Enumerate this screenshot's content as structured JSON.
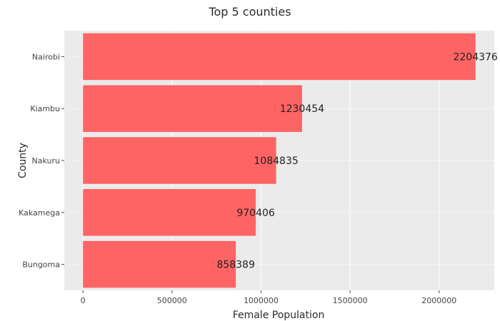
{
  "chart_data": {
    "type": "bar",
    "orientation": "horizontal",
    "title": "Top 5 counties",
    "xlabel": "Female Population",
    "ylabel": "County",
    "categories": [
      "Nairobi",
      "Kiambu",
      "Nakuru",
      "Kakamega",
      "Bungoma"
    ],
    "values": [
      2204376,
      1230454,
      1084835,
      970406,
      858389
    ],
    "data_labels": [
      "2204376",
      "1230454",
      "1084835",
      "970406",
      "858389"
    ],
    "x_ticks": [
      0,
      500000,
      1000000,
      1500000,
      2000000
    ],
    "x_tick_labels": [
      "0",
      "500000",
      "1000000",
      "1500000",
      "2000000"
    ],
    "xlim": [
      -105000,
      2310000
    ],
    "grid": true,
    "legend": "none",
    "colors": {
      "bar": "#ff6464",
      "panel": "#ebebeb",
      "grid": "#ffffff"
    }
  }
}
